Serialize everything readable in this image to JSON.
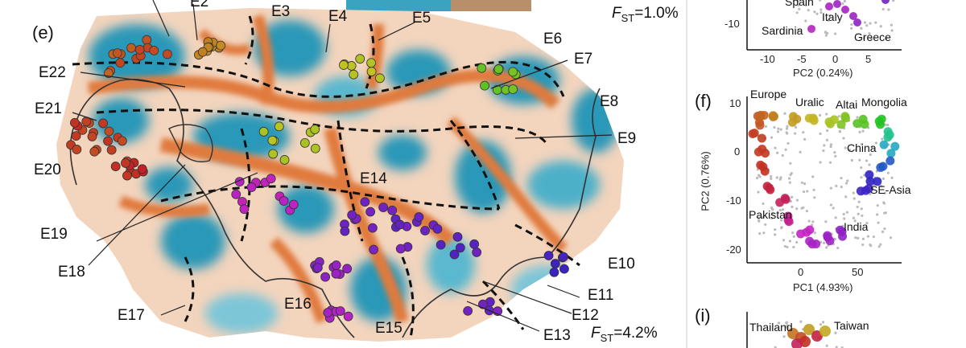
{
  "panel_e": {
    "label": "(e)",
    "fst_top": "=1.0%",
    "fst_bottom": "=4.2%",
    "fst_symbol": "F",
    "fst_sub": "ST",
    "zones": [
      "E2",
      "E3",
      "E4",
      "E5",
      "E6",
      "E7",
      "E8",
      "E9",
      "E10",
      "E11",
      "E12",
      "E13",
      "E14",
      "E15",
      "E16",
      "E17",
      "E18",
      "E19",
      "E20",
      "E21",
      "E22"
    ],
    "colors": {
      "ocean": "#ffffff",
      "barrier": "#e07a3c",
      "corridor": "#2a98b8",
      "coast": "#333333"
    }
  },
  "panel_top_pca": {
    "places": [
      "Spain",
      "Italy",
      "Sardinia",
      "Greece"
    ],
    "x_ticks": [
      "-10",
      "-5",
      "0",
      "5"
    ],
    "y_ticks": [
      "-10"
    ],
    "x_title": "PC2 (0.24%)"
  },
  "panel_f": {
    "label": "(f)",
    "places": [
      "Europe",
      "Uralic",
      "Altai",
      "Mongolia",
      "China",
      "SE-Asia",
      "Pakistan",
      "India"
    ],
    "x_ticks": [
      "0",
      "50"
    ],
    "y_ticks": [
      "10",
      "0",
      "-10",
      "-20"
    ],
    "x_title": "PC1 (4.93%)",
    "y_title": "PC2 (0.76%)"
  },
  "panel_i": {
    "label": "(i)",
    "places": [
      "Thailand",
      "Taiwan"
    ]
  }
}
